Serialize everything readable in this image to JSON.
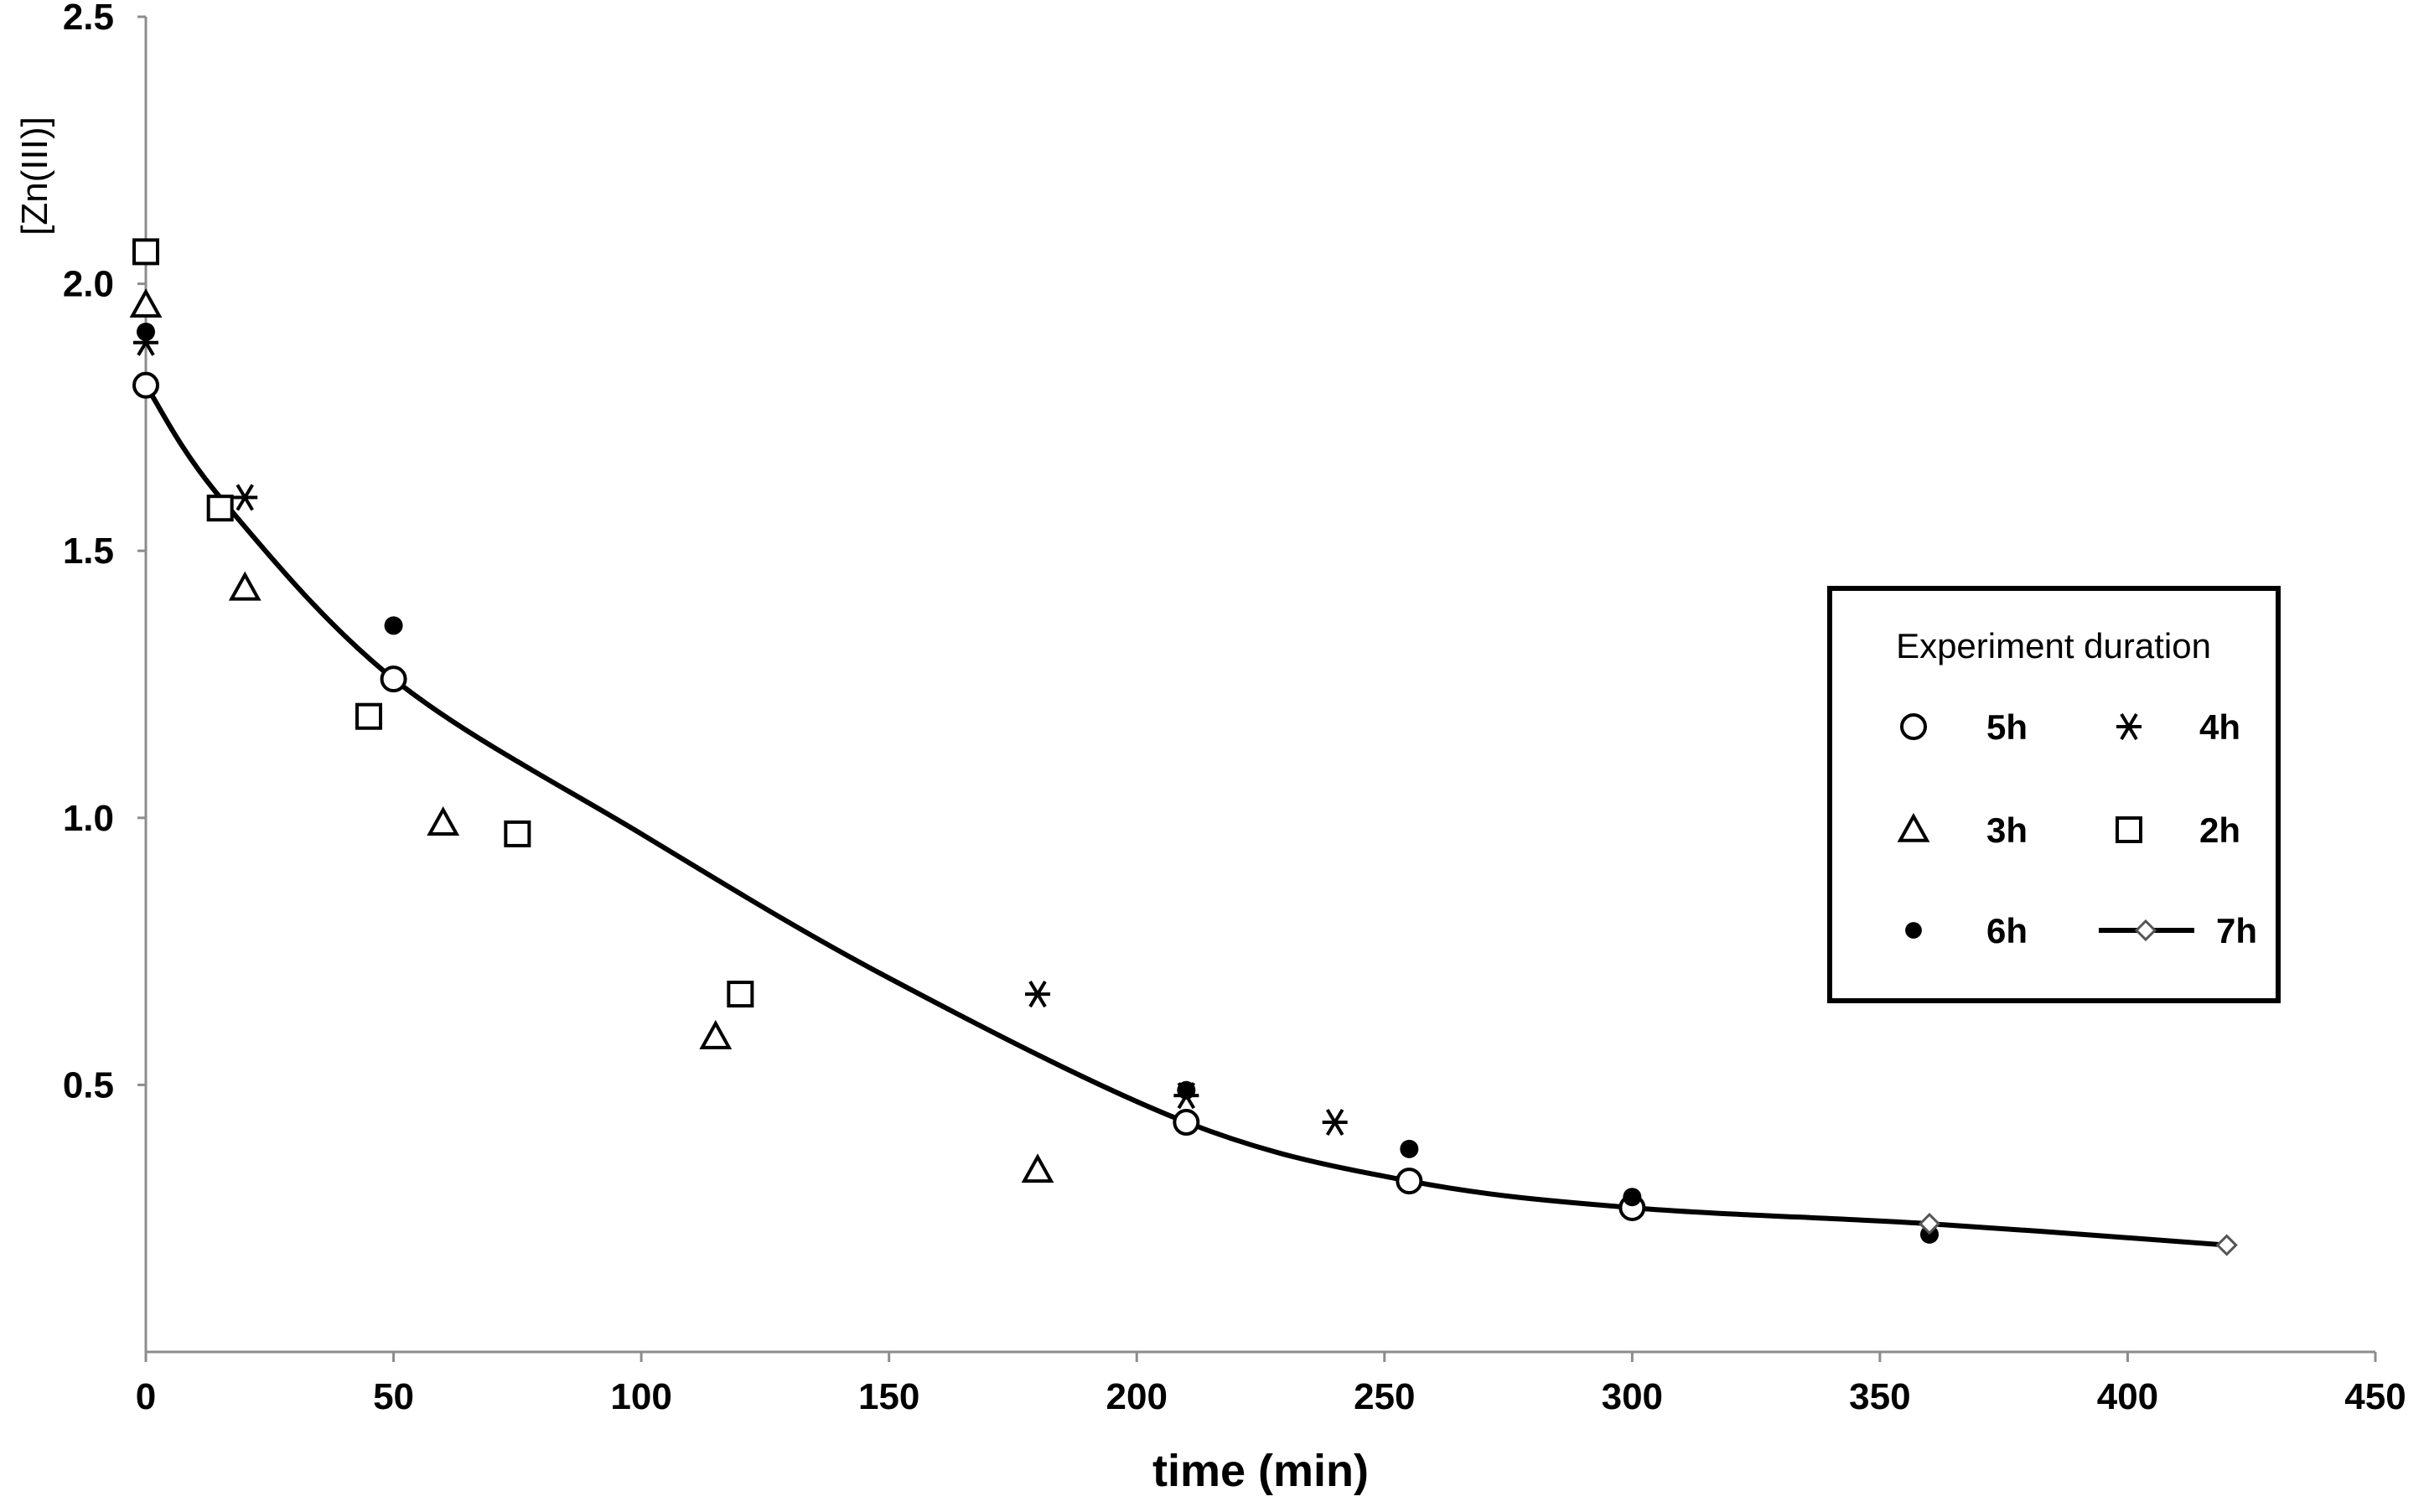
{
  "chart_data": {
    "type": "scatter",
    "title": "",
    "xlabel": "time (min)",
    "ylabel": "[Zn(III)]",
    "xlim": [
      0,
      450
    ],
    "ylim": [
      0,
      2.5
    ],
    "x_ticks": [
      "0",
      "50",
      "100",
      "150",
      "200",
      "250",
      "300",
      "350",
      "400",
      "450"
    ],
    "y_ticks": [
      "0.5",
      "1.0",
      "1.5",
      "2.0",
      "2.5"
    ],
    "grid": false,
    "legend": {
      "title": "Experiment duration",
      "placement": "right"
    },
    "series": [
      {
        "name": "5h",
        "marker": "circle",
        "points": [
          [
            0,
            1.81
          ],
          [
            50,
            1.26
          ],
          [
            210,
            0.43
          ],
          [
            255,
            0.32
          ],
          [
            300,
            0.27
          ]
        ]
      },
      {
        "name": "4h",
        "marker": "asterisk",
        "points": [
          [
            0,
            1.89
          ],
          [
            20,
            1.6
          ],
          [
            180,
            0.67
          ],
          [
            210,
            0.48
          ],
          [
            240,
            0.43
          ]
        ]
      },
      {
        "name": "3h",
        "marker": "triangle",
        "points": [
          [
            0,
            1.96
          ],
          [
            20,
            1.43
          ],
          [
            60,
            0.99
          ],
          [
            115,
            0.59
          ],
          [
            180,
            0.34
          ]
        ]
      },
      {
        "name": "2h",
        "marker": "square",
        "points": [
          [
            0,
            2.06
          ],
          [
            15,
            1.58
          ],
          [
            45,
            1.19
          ],
          [
            75,
            0.97
          ],
          [
            120,
            0.67
          ]
        ]
      },
      {
        "name": "6h",
        "marker": "dot",
        "points": [
          [
            0,
            1.91
          ],
          [
            50,
            1.36
          ],
          [
            210,
            0.49
          ],
          [
            255,
            0.38
          ],
          [
            300,
            0.29
          ],
          [
            360,
            0.22
          ]
        ]
      },
      {
        "name": "7h",
        "marker": "diamond-line",
        "points": [
          [
            0,
            1.81
          ],
          [
            15,
            1.6
          ],
          [
            50,
            1.26
          ],
          [
            100,
            0.97
          ],
          [
            150,
            0.7
          ],
          [
            210,
            0.43
          ],
          [
            255,
            0.32
          ],
          [
            300,
            0.27
          ],
          [
            360,
            0.24
          ],
          [
            420,
            0.2
          ]
        ]
      }
    ]
  }
}
